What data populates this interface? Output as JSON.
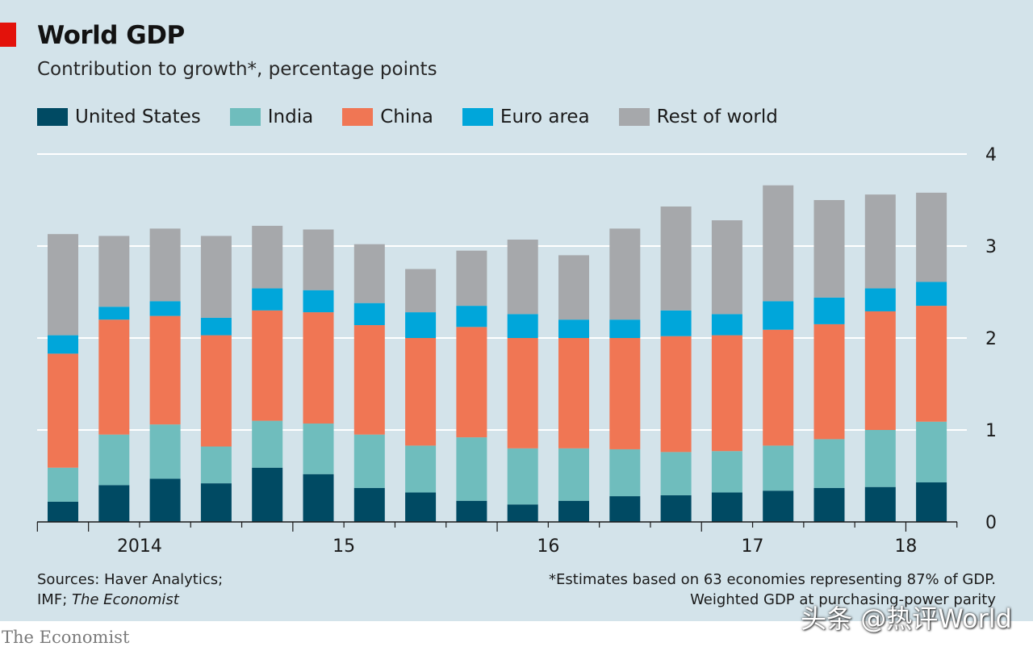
{
  "colors": {
    "background": "#d3e3ea",
    "accent_red": "#e3120b",
    "united_states": "#004a63",
    "india": "#6fbdbd",
    "china": "#f07654",
    "euro_area": "#00a6da",
    "rest_of_world": "#a6a8ab",
    "gridline": "#ffffff"
  },
  "header": {
    "title": "World GDP",
    "subtitle": "Contribution to growth*, percentage points"
  },
  "legend": {
    "items": [
      {
        "label": "United States",
        "color": "#004a63"
      },
      {
        "label": "India",
        "color": "#6fbdbd"
      },
      {
        "label": "China",
        "color": "#f07654"
      },
      {
        "label": "Euro area",
        "color": "#00a6da"
      },
      {
        "label": "Rest of world",
        "color": "#a6a8ab"
      }
    ]
  },
  "chart_data": {
    "type": "bar",
    "stacked": true,
    "title": "World GDP",
    "subtitle": "Contribution to growth*, percentage points",
    "xlabel": "",
    "ylabel": "",
    "ylim": [
      0,
      4
    ],
    "yticks": [
      0,
      1,
      2,
      3,
      4
    ],
    "y_axis_side": "right",
    "grid": true,
    "x_tick_labels": [
      {
        "label": "2014",
        "position": 1.5
      },
      {
        "label": "15",
        "position": 5.5
      },
      {
        "label": "16",
        "position": 9.5
      },
      {
        "label": "17",
        "position": 13.5
      },
      {
        "label": "18",
        "position": 16.5
      }
    ],
    "categories": [
      "2013 Q4",
      "2014 Q1",
      "2014 Q2",
      "2014 Q3",
      "2014 Q4",
      "2015 Q1",
      "2015 Q2",
      "2015 Q3",
      "2015 Q4",
      "2016 Q1",
      "2016 Q2",
      "2016 Q3",
      "2016 Q4",
      "2017 Q1",
      "2017 Q2",
      "2017 Q3",
      "2017 Q4",
      "2018 Q1"
    ],
    "series": [
      {
        "name": "United States",
        "values": [
          0.22,
          0.4,
          0.47,
          0.42,
          0.59,
          0.52,
          0.37,
          0.32,
          0.23,
          0.19,
          0.23,
          0.28,
          0.29,
          0.32,
          0.34,
          0.37,
          0.38,
          0.43
        ]
      },
      {
        "name": "India",
        "values": [
          0.37,
          0.55,
          0.59,
          0.4,
          0.51,
          0.55,
          0.58,
          0.51,
          0.69,
          0.61,
          0.57,
          0.51,
          0.47,
          0.45,
          0.49,
          0.53,
          0.62,
          0.66
        ]
      },
      {
        "name": "China",
        "values": [
          1.24,
          1.25,
          1.18,
          1.21,
          1.2,
          1.21,
          1.19,
          1.17,
          1.2,
          1.2,
          1.2,
          1.21,
          1.26,
          1.26,
          1.26,
          1.25,
          1.29,
          1.26
        ]
      },
      {
        "name": "Euro area",
        "values": [
          0.2,
          0.14,
          0.16,
          0.19,
          0.24,
          0.24,
          0.24,
          0.28,
          0.23,
          0.26,
          0.2,
          0.2,
          0.28,
          0.23,
          0.31,
          0.29,
          0.25,
          0.26
        ]
      },
      {
        "name": "Rest of world",
        "values": [
          1.1,
          0.77,
          0.79,
          0.89,
          0.68,
          0.66,
          0.64,
          0.47,
          0.6,
          0.81,
          0.7,
          0.99,
          1.13,
          1.02,
          1.26,
          1.06,
          1.02,
          0.97
        ]
      }
    ]
  },
  "footer": {
    "sources_line1": "Sources: Haver Analytics;",
    "sources_line2_prefix": "IMF; ",
    "sources_line2_italic": "The Economist",
    "footnote_line1": "*Estimates based on 63 economies representing 87% of GDP.",
    "footnote_line2": "Weighted GDP at purchasing-power parity",
    "brand": "The Economist",
    "watermark": "头条 @热评World"
  }
}
